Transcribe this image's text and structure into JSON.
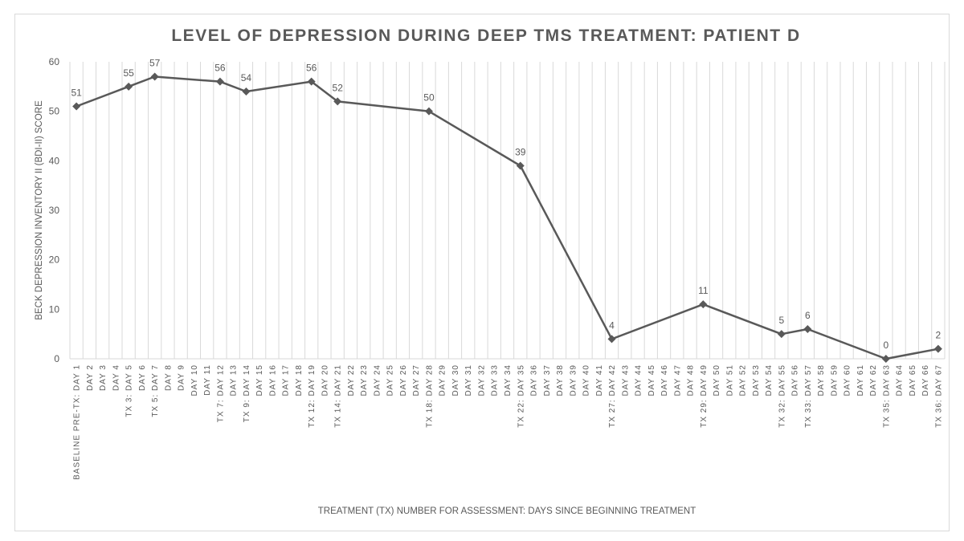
{
  "chart_data": {
    "type": "line",
    "title": "LEVEL OF DEPRESSION DURING DEEP TMS TREATMENT: PATIENT D",
    "xlabel": "TREATMENT (TX) NUMBER FOR ASSESSMENT: DAYS SINCE BEGINNING TREATMENT",
    "ylabel": "BECK DEPRESSION INVENTORY II (BDI-II) SCORE",
    "ylim": [
      0,
      60
    ],
    "yticks": [
      0,
      10,
      20,
      30,
      40,
      50,
      60
    ],
    "grid": "vertical",
    "categories": [
      "BASELINE PRE-TX: DAY 1",
      "DAY 2",
      "DAY 3",
      "DAY 4",
      "TX 3: DAY 5",
      "DAY 6",
      "TX 5: DAY 7",
      "DAY 8",
      "DAY 9",
      "DAY 10",
      "DAY 11",
      "TX 7: DAY 12",
      "DAY 13",
      "TX 9: DAY 14",
      "DAY 15",
      "DAY 16",
      "DAY 17",
      "DAY 18",
      "TX 12: DAY 19",
      "DAY 20",
      "TX 14: DAY 21",
      "DAY 22",
      "DAY 23",
      "DAY 24",
      "DAY 25",
      "DAY 26",
      "DAY 27",
      "TX 18: DAY 28",
      "DAY 29",
      "DAY 30",
      "DAY 31",
      "DAY 32",
      "DAY 33",
      "DAY 34",
      "TX 22: DAY 35",
      "DAY 36",
      "DAY 37",
      "DAY 38",
      "DAY 39",
      "DAY 40",
      "DAY 41",
      "TX 27: DAY 42",
      "DAY 43",
      "DAY 44",
      "DAY 45",
      "DAY 46",
      "DAY 47",
      "DAY 48",
      "TX 29: DAY 49",
      "DAY 50",
      "DAY 51",
      "DAY 52",
      "DAY 53",
      "DAY 54",
      "TX 32: DAY 55",
      "DAY 56",
      "TX 33: DAY 57",
      "DAY 58",
      "DAY 59",
      "DAY 60",
      "DAY 61",
      "DAY 62",
      "TX 35: DAY 63",
      "DAY 64",
      "DAY 65",
      "DAY 66",
      "TX 36: DAY 67"
    ],
    "series": [
      {
        "name": "BDI-II Score",
        "color": "#595959",
        "points": [
          {
            "index": 0,
            "value": 51
          },
          {
            "index": 4,
            "value": 55
          },
          {
            "index": 6,
            "value": 57
          },
          {
            "index": 11,
            "value": 56
          },
          {
            "index": 13,
            "value": 54
          },
          {
            "index": 18,
            "value": 56
          },
          {
            "index": 20,
            "value": 52
          },
          {
            "index": 27,
            "value": 50
          },
          {
            "index": 34,
            "value": 39
          },
          {
            "index": 41,
            "value": 4
          },
          {
            "index": 48,
            "value": 11
          },
          {
            "index": 54,
            "value": 5
          },
          {
            "index": 56,
            "value": 6
          },
          {
            "index": 62,
            "value": 0
          },
          {
            "index": 66,
            "value": 2
          }
        ]
      }
    ]
  }
}
